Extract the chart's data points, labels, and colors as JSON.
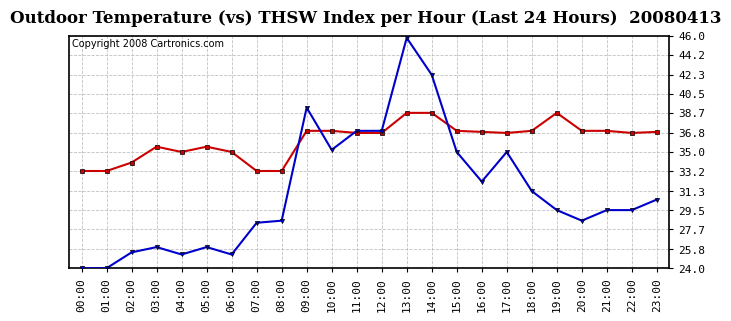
{
  "title": "Outdoor Temperature (vs) THSW Index per Hour (Last 24 Hours)  20080413",
  "copyright": "Copyright 2008 Cartronics.com",
  "x_labels": [
    "00:00",
    "01:00",
    "02:00",
    "03:00",
    "04:00",
    "05:00",
    "06:00",
    "07:00",
    "08:00",
    "09:00",
    "10:00",
    "11:00",
    "12:00",
    "13:00",
    "14:00",
    "15:00",
    "16:00",
    "17:00",
    "18:00",
    "19:00",
    "20:00",
    "21:00",
    "22:00",
    "23:00"
  ],
  "temp_data": [
    24.0,
    24.0,
    25.5,
    26.0,
    25.3,
    26.0,
    25.3,
    28.3,
    28.5,
    39.2,
    35.2,
    37.0,
    37.0,
    45.8,
    42.3,
    35.0,
    32.2,
    35.0,
    31.3,
    29.5,
    28.5,
    29.5,
    29.5,
    30.5
  ],
  "thsw_data": [
    33.2,
    33.2,
    34.0,
    35.5,
    35.0,
    35.5,
    35.0,
    33.2,
    33.2,
    37.0,
    37.0,
    36.8,
    36.8,
    38.7,
    38.7,
    37.0,
    36.9,
    36.8,
    37.0,
    38.7,
    37.0,
    37.0,
    36.8,
    36.9
  ],
  "temp_color": "#0000cc",
  "thsw_color": "#cc0000",
  "ylim": [
    24.0,
    46.0
  ],
  "yticks": [
    24.0,
    25.8,
    27.7,
    29.5,
    31.3,
    33.2,
    35.0,
    36.8,
    38.7,
    40.5,
    42.3,
    44.2,
    46.0
  ],
  "bg_color": "#ffffff",
  "grid_color": "#bbbbbb",
  "title_fontsize": 12,
  "copyright_fontsize": 7,
  "tick_fontsize": 8
}
